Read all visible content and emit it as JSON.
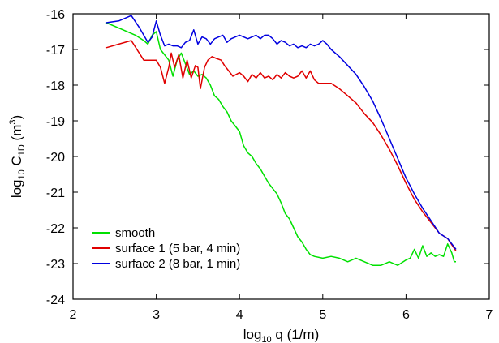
{
  "chart_data": {
    "type": "line",
    "xlabel": {
      "base": "log",
      "sub": "10",
      "rest": " q  (1/m)"
    },
    "ylabel": {
      "base": "log",
      "sub": "10",
      "mid": " C",
      "sub2": "1D",
      "rest": "  (m",
      "sup": "3",
      "end": ")"
    },
    "xlim": [
      2,
      7
    ],
    "ylim": [
      -24,
      -16
    ],
    "xticks": [
      "2",
      "3",
      "4",
      "5",
      "6",
      "7"
    ],
    "yticks": [
      "-24",
      "-23",
      "-22",
      "-21",
      "-20",
      "-19",
      "-18",
      "-17",
      "-16"
    ],
    "legend_position": "bottom-left",
    "series": [
      {
        "name": "smooth",
        "color": "#00e000",
        "points": [
          [
            2.4,
            -16.25
          ],
          [
            2.6,
            -16.45
          ],
          [
            2.75,
            -16.6
          ],
          [
            2.85,
            -16.75
          ],
          [
            2.9,
            -16.85
          ],
          [
            2.95,
            -16.6
          ],
          [
            3.0,
            -16.5
          ],
          [
            3.05,
            -17.0
          ],
          [
            3.1,
            -17.15
          ],
          [
            3.15,
            -17.3
          ],
          [
            3.2,
            -17.75
          ],
          [
            3.25,
            -17.3
          ],
          [
            3.3,
            -17.1
          ],
          [
            3.35,
            -17.4
          ],
          [
            3.4,
            -17.7
          ],
          [
            3.45,
            -17.6
          ],
          [
            3.5,
            -17.75
          ],
          [
            3.55,
            -17.7
          ],
          [
            3.6,
            -17.8
          ],
          [
            3.65,
            -18.0
          ],
          [
            3.7,
            -18.3
          ],
          [
            3.75,
            -18.4
          ],
          [
            3.8,
            -18.6
          ],
          [
            3.85,
            -18.75
          ],
          [
            3.9,
            -19.0
          ],
          [
            3.95,
            -19.15
          ],
          [
            4.0,
            -19.3
          ],
          [
            4.05,
            -19.7
          ],
          [
            4.1,
            -19.9
          ],
          [
            4.15,
            -20.0
          ],
          [
            4.2,
            -20.2
          ],
          [
            4.25,
            -20.35
          ],
          [
            4.3,
            -20.55
          ],
          [
            4.35,
            -20.75
          ],
          [
            4.4,
            -20.9
          ],
          [
            4.45,
            -21.05
          ],
          [
            4.5,
            -21.3
          ],
          [
            4.55,
            -21.6
          ],
          [
            4.6,
            -21.75
          ],
          [
            4.65,
            -22.0
          ],
          [
            4.7,
            -22.25
          ],
          [
            4.75,
            -22.4
          ],
          [
            4.8,
            -22.6
          ],
          [
            4.85,
            -22.75
          ],
          [
            4.9,
            -22.8
          ],
          [
            5.0,
            -22.85
          ],
          [
            5.1,
            -22.8
          ],
          [
            5.2,
            -22.85
          ],
          [
            5.3,
            -22.95
          ],
          [
            5.4,
            -22.85
          ],
          [
            5.5,
            -22.95
          ],
          [
            5.6,
            -23.05
          ],
          [
            5.7,
            -23.05
          ],
          [
            5.8,
            -22.95
          ],
          [
            5.9,
            -23.05
          ],
          [
            6.0,
            -22.9
          ],
          [
            6.05,
            -22.85
          ],
          [
            6.1,
            -22.6
          ],
          [
            6.15,
            -22.85
          ],
          [
            6.2,
            -22.5
          ],
          [
            6.25,
            -22.8
          ],
          [
            6.3,
            -22.7
          ],
          [
            6.35,
            -22.8
          ],
          [
            6.4,
            -22.75
          ],
          [
            6.45,
            -22.8
          ],
          [
            6.5,
            -22.45
          ],
          [
            6.55,
            -22.7
          ],
          [
            6.58,
            -22.95
          ],
          [
            6.6,
            -22.95
          ]
        ]
      },
      {
        "name": "surface 1 (5 bar, 4 min)",
        "color": "#e00000",
        "points": [
          [
            2.4,
            -16.95
          ],
          [
            2.55,
            -16.85
          ],
          [
            2.7,
            -16.75
          ],
          [
            2.85,
            -17.3
          ],
          [
            3.0,
            -17.3
          ],
          [
            3.05,
            -17.5
          ],
          [
            3.1,
            -17.95
          ],
          [
            3.15,
            -17.5
          ],
          [
            3.18,
            -17.1
          ],
          [
            3.22,
            -17.5
          ],
          [
            3.27,
            -17.15
          ],
          [
            3.32,
            -17.8
          ],
          [
            3.37,
            -17.3
          ],
          [
            3.42,
            -17.8
          ],
          [
            3.47,
            -17.45
          ],
          [
            3.5,
            -17.5
          ],
          [
            3.53,
            -18.1
          ],
          [
            3.58,
            -17.5
          ],
          [
            3.62,
            -17.3
          ],
          [
            3.67,
            -17.2
          ],
          [
            3.72,
            -17.25
          ],
          [
            3.78,
            -17.3
          ],
          [
            3.82,
            -17.45
          ],
          [
            3.87,
            -17.6
          ],
          [
            3.92,
            -17.75
          ],
          [
            3.96,
            -17.7
          ],
          [
            4.0,
            -17.65
          ],
          [
            4.05,
            -17.75
          ],
          [
            4.1,
            -17.9
          ],
          [
            4.15,
            -17.7
          ],
          [
            4.2,
            -17.8
          ],
          [
            4.25,
            -17.65
          ],
          [
            4.3,
            -17.8
          ],
          [
            4.35,
            -17.75
          ],
          [
            4.4,
            -17.85
          ],
          [
            4.45,
            -17.7
          ],
          [
            4.5,
            -17.8
          ],
          [
            4.55,
            -17.65
          ],
          [
            4.6,
            -17.75
          ],
          [
            4.65,
            -17.8
          ],
          [
            4.7,
            -17.75
          ],
          [
            4.75,
            -17.6
          ],
          [
            4.8,
            -17.8
          ],
          [
            4.85,
            -17.6
          ],
          [
            4.9,
            -17.85
          ],
          [
            4.95,
            -17.95
          ],
          [
            5.0,
            -17.95
          ],
          [
            5.1,
            -17.95
          ],
          [
            5.2,
            -18.1
          ],
          [
            5.3,
            -18.3
          ],
          [
            5.4,
            -18.5
          ],
          [
            5.5,
            -18.8
          ],
          [
            5.6,
            -19.05
          ],
          [
            5.7,
            -19.4
          ],
          [
            5.8,
            -19.8
          ],
          [
            5.9,
            -20.25
          ],
          [
            6.0,
            -20.75
          ],
          [
            6.1,
            -21.2
          ],
          [
            6.2,
            -21.55
          ],
          [
            6.3,
            -21.85
          ],
          [
            6.4,
            -22.15
          ],
          [
            6.5,
            -22.3
          ],
          [
            6.6,
            -22.65
          ]
        ]
      },
      {
        "name": "surface 2 (8 bar, 1 min)",
        "color": "#0000e0",
        "points": [
          [
            2.4,
            -16.25
          ],
          [
            2.55,
            -16.2
          ],
          [
            2.7,
            -16.05
          ],
          [
            2.8,
            -16.4
          ],
          [
            2.9,
            -16.8
          ],
          [
            2.95,
            -16.65
          ],
          [
            3.0,
            -16.2
          ],
          [
            3.05,
            -16.6
          ],
          [
            3.1,
            -16.9
          ],
          [
            3.15,
            -16.85
          ],
          [
            3.2,
            -16.9
          ],
          [
            3.25,
            -16.9
          ],
          [
            3.3,
            -16.95
          ],
          [
            3.35,
            -16.8
          ],
          [
            3.4,
            -16.75
          ],
          [
            3.45,
            -16.45
          ],
          [
            3.5,
            -16.85
          ],
          [
            3.55,
            -16.65
          ],
          [
            3.6,
            -16.7
          ],
          [
            3.65,
            -16.85
          ],
          [
            3.7,
            -16.7
          ],
          [
            3.75,
            -16.65
          ],
          [
            3.8,
            -16.6
          ],
          [
            3.85,
            -16.8
          ],
          [
            3.9,
            -16.7
          ],
          [
            3.95,
            -16.65
          ],
          [
            4.0,
            -16.6
          ],
          [
            4.05,
            -16.65
          ],
          [
            4.1,
            -16.7
          ],
          [
            4.15,
            -16.65
          ],
          [
            4.2,
            -16.6
          ],
          [
            4.25,
            -16.7
          ],
          [
            4.3,
            -16.6
          ],
          [
            4.35,
            -16.6
          ],
          [
            4.4,
            -16.7
          ],
          [
            4.45,
            -16.85
          ],
          [
            4.5,
            -16.75
          ],
          [
            4.55,
            -16.8
          ],
          [
            4.6,
            -16.9
          ],
          [
            4.65,
            -16.85
          ],
          [
            4.7,
            -16.95
          ],
          [
            4.75,
            -16.9
          ],
          [
            4.8,
            -16.95
          ],
          [
            4.85,
            -16.85
          ],
          [
            4.9,
            -16.9
          ],
          [
            4.95,
            -16.85
          ],
          [
            5.0,
            -16.75
          ],
          [
            5.05,
            -16.85
          ],
          [
            5.1,
            -17.0
          ],
          [
            5.2,
            -17.2
          ],
          [
            5.3,
            -17.45
          ],
          [
            5.4,
            -17.7
          ],
          [
            5.5,
            -18.05
          ],
          [
            5.6,
            -18.45
          ],
          [
            5.7,
            -18.95
          ],
          [
            5.8,
            -19.5
          ],
          [
            5.9,
            -20.05
          ],
          [
            6.0,
            -20.6
          ],
          [
            6.1,
            -21.05
          ],
          [
            6.2,
            -21.45
          ],
          [
            6.3,
            -21.8
          ],
          [
            6.4,
            -22.15
          ],
          [
            6.5,
            -22.3
          ],
          [
            6.6,
            -22.6
          ]
        ]
      }
    ]
  }
}
